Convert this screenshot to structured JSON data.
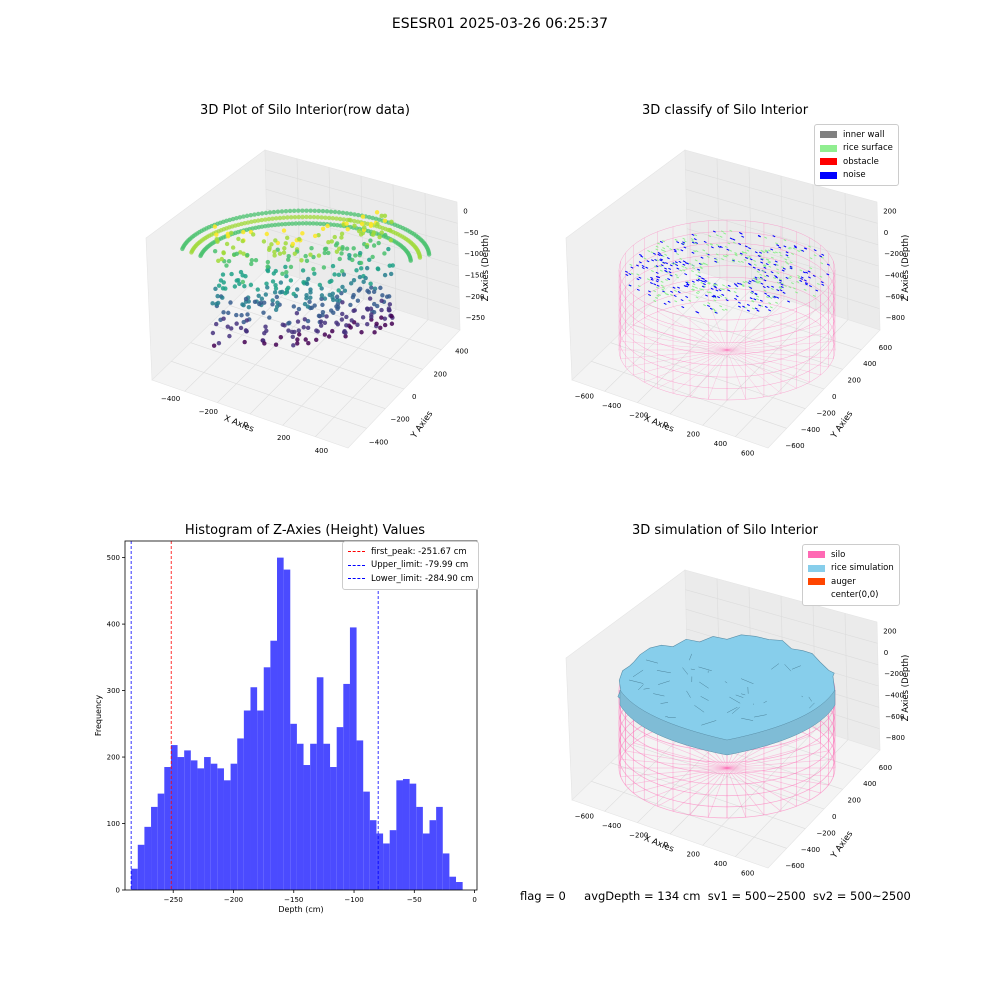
{
  "suptitle": "ESESR01 2025-03-26 06:25:37",
  "status": {
    "flag": "flag = 0",
    "avgDepth": "avgDepth = 134 cm",
    "sv1": "sv1 = 500~2500",
    "sv2": "sv2 = 500~2500"
  },
  "colors": {
    "inner_wall": "#808080",
    "rice_surface": "#90ee90",
    "obstacle": "#ff0000",
    "noise": "#0000ff",
    "silo": "#ff69b4",
    "rice_simulation": "#87ceeb",
    "auger": "#ff4500",
    "histogram_bar": "#4b4bff",
    "first_peak_line": "#ff0000",
    "limit_line": "#0000ff"
  },
  "chart_data": [
    {
      "type": "scatter3d",
      "title": "3D Plot of Silo Interior(row data)",
      "xlabel": "X Axies",
      "ylabel": "Y Axies",
      "zlabel": "Z Axies (Depth)",
      "x_ticks": [
        "−400",
        "−200",
        "0",
        "200",
        "400"
      ],
      "y_ticks": [
        "−400",
        "−200",
        "0",
        "200",
        "400"
      ],
      "z_ticks": [
        "0",
        "−50",
        "−100",
        "−150",
        "−200",
        "−250"
      ],
      "colormap": "viridis"
    },
    {
      "type": "scatter3d",
      "title": "3D classify of Silo Interior",
      "xlabel": "X Axies",
      "ylabel": "Y Axies",
      "zlabel": "Z Axies (Depth)",
      "x_ticks": [
        "−600",
        "−400",
        "−200",
        "0",
        "200",
        "400",
        "600"
      ],
      "y_ticks": [
        "−600",
        "−400",
        "−200",
        "0",
        "200",
        "400",
        "600"
      ],
      "z_ticks": [
        "200",
        "0",
        "−200",
        "−400",
        "−600",
        "−800"
      ],
      "legend": [
        "inner wall",
        "rice surface",
        "obstacle",
        "noise"
      ]
    },
    {
      "type": "bar",
      "title": "Histogram of Z-Axies (Height) Values",
      "xlabel": "Depth (cm)",
      "ylabel": "Frequency",
      "xlim": [
        -290,
        2
      ],
      "ylim": [
        0,
        525
      ],
      "x_ticks": [
        -250,
        -200,
        -150,
        -100,
        -50,
        0
      ],
      "x_tick_labels": [
        "−250",
        "−200",
        "−150",
        "−100",
        "−50",
        "0"
      ],
      "y_ticks": [
        0,
        100,
        200,
        300,
        400,
        500
      ],
      "bin_start": -284.9,
      "bin_width": 5.5,
      "values": [
        32,
        68,
        95,
        125,
        145,
        185,
        218,
        200,
        210,
        195,
        183,
        200,
        190,
        183,
        165,
        190,
        228,
        270,
        305,
        270,
        335,
        375,
        500,
        482,
        250,
        220,
        188,
        220,
        320,
        220,
        185,
        245,
        310,
        395,
        225,
        148,
        105,
        85,
        70,
        90,
        165,
        167,
        160,
        125,
        85,
        105,
        125,
        55,
        20,
        12
      ],
      "vlines": [
        {
          "label": "first_peak: -251.67 cm",
          "x": -251.67,
          "color": "#ff0000"
        },
        {
          "label": "Upper_limit: -79.99 cm",
          "x": -79.99,
          "color": "#0000ff"
        },
        {
          "label": "Lower_limit: -284.90 cm",
          "x": -284.9,
          "color": "#0000ff"
        }
      ],
      "legend_position": "top-right"
    },
    {
      "type": "surface3d",
      "title": "3D simulation of Silo Interior",
      "xlabel": "X Axies",
      "ylabel": "Y Axies",
      "zlabel": "Z Axies (Depth)",
      "x_ticks": [
        "−600",
        "−400",
        "−200",
        "0",
        "200",
        "400",
        "600"
      ],
      "y_ticks": [
        "−600",
        "−400",
        "−200",
        "0",
        "200",
        "400",
        "600"
      ],
      "z_ticks": [
        "200",
        "0",
        "−200",
        "−400",
        "−600",
        "−800"
      ],
      "legend": [
        "silo",
        "rice simulation",
        "auger",
        "center(0,0)"
      ]
    }
  ]
}
